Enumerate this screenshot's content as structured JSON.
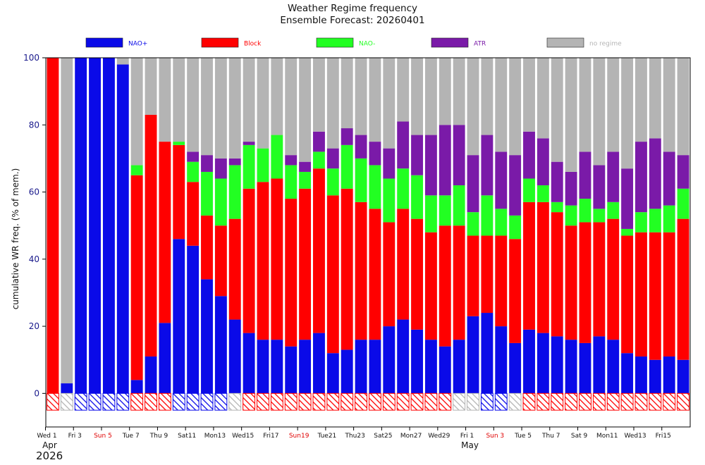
{
  "chart_data": {
    "type": "bar",
    "stacked": true,
    "title": "Weather Regime frequency",
    "subtitle": "Ensemble Forecast: 20260401",
    "ylabel": "cumulative WR freq. (% of mem.)",
    "xlabel": "",
    "ylim": [
      -10,
      100
    ],
    "yticks": [
      0,
      20,
      40,
      60,
      80,
      100
    ],
    "legend_position": "top",
    "legend": [
      {
        "name": "NAO+",
        "color": "#0a0ae8"
      },
      {
        "name": "Block",
        "color": "#ff0000"
      },
      {
        "name": "NAO-",
        "color": "#22ff22"
      },
      {
        "name": "ATR",
        "color": "#7a1aa8"
      },
      {
        "name": "no regime",
        "color": "#b4b4b4"
      }
    ],
    "colors": {
      "nao_plus": "#0a0ae8",
      "block": "#ff0000",
      "nao_minus": "#22ff22",
      "atr": "#7a1aa8",
      "no_regime": "#b4b4b4",
      "tick_text": "#1a1a8c",
      "weekend_text": "#e00000"
    },
    "series_order": [
      "NAO+",
      "Block",
      "NAO-",
      "ATR",
      "no regime"
    ],
    "days": [
      {
        "nao_plus": 0,
        "block": 100,
        "nao_minus": 0,
        "atr": 0,
        "dominant": "Block"
      },
      {
        "nao_plus": 3,
        "block": 0,
        "nao_minus": 0,
        "atr": 0,
        "dominant": "no regime"
      },
      {
        "nao_plus": 100,
        "block": 0,
        "nao_minus": 0,
        "atr": 0,
        "dominant": "NAO+"
      },
      {
        "nao_plus": 100,
        "block": 0,
        "nao_minus": 0,
        "atr": 0,
        "dominant": "NAO+"
      },
      {
        "nao_plus": 100,
        "block": 0,
        "nao_minus": 0,
        "atr": 0,
        "dominant": "NAO+"
      },
      {
        "nao_plus": 98,
        "block": 0,
        "nao_minus": 0,
        "atr": 0,
        "dominant": "NAO+"
      },
      {
        "nao_plus": 4,
        "block": 61,
        "nao_minus": 3,
        "atr": 0,
        "dominant": "Block"
      },
      {
        "nao_plus": 11,
        "block": 72,
        "nao_minus": 0,
        "atr": 0,
        "dominant": "Block"
      },
      {
        "nao_plus": 21,
        "block": 54,
        "nao_minus": 0,
        "atr": 0,
        "dominant": "Block"
      },
      {
        "nao_plus": 46,
        "block": 28,
        "nao_minus": 1,
        "atr": 0,
        "dominant": "NAO+"
      },
      {
        "nao_plus": 44,
        "block": 19,
        "nao_minus": 6,
        "atr": 3,
        "dominant": "NAO+"
      },
      {
        "nao_plus": 34,
        "block": 19,
        "nao_minus": 13,
        "atr": 5,
        "dominant": "NAO+"
      },
      {
        "nao_plus": 29,
        "block": 21,
        "nao_minus": 14,
        "atr": 6,
        "dominant": "NAO+"
      },
      {
        "nao_plus": 22,
        "block": 30,
        "nao_minus": 16,
        "atr": 2,
        "dominant": "no regime"
      },
      {
        "nao_plus": 18,
        "block": 43,
        "nao_minus": 13,
        "atr": 1,
        "dominant": "Block"
      },
      {
        "nao_plus": 16,
        "block": 47,
        "nao_minus": 10,
        "atr": 0,
        "dominant": "Block"
      },
      {
        "nao_plus": 16,
        "block": 48,
        "nao_minus": 13,
        "atr": 0,
        "dominant": "Block"
      },
      {
        "nao_plus": 14,
        "block": 44,
        "nao_minus": 10,
        "atr": 3,
        "dominant": "Block"
      },
      {
        "nao_plus": 16,
        "block": 45,
        "nao_minus": 5,
        "atr": 3,
        "dominant": "Block"
      },
      {
        "nao_plus": 18,
        "block": 49,
        "nao_minus": 5,
        "atr": 6,
        "dominant": "Block"
      },
      {
        "nao_plus": 12,
        "block": 47,
        "nao_minus": 8,
        "atr": 6,
        "dominant": "Block"
      },
      {
        "nao_plus": 13,
        "block": 48,
        "nao_minus": 13,
        "atr": 5,
        "dominant": "Block"
      },
      {
        "nao_plus": 16,
        "block": 41,
        "nao_minus": 13,
        "atr": 7,
        "dominant": "Block"
      },
      {
        "nao_plus": 16,
        "block": 39,
        "nao_minus": 13,
        "atr": 7,
        "dominant": "Block"
      },
      {
        "nao_plus": 20,
        "block": 31,
        "nao_minus": 13,
        "atr": 9,
        "dominant": "Block"
      },
      {
        "nao_plus": 22,
        "block": 33,
        "nao_minus": 12,
        "atr": 14,
        "dominant": "Block"
      },
      {
        "nao_plus": 19,
        "block": 33,
        "nao_minus": 13,
        "atr": 12,
        "dominant": "Block"
      },
      {
        "nao_plus": 16,
        "block": 32,
        "nao_minus": 11,
        "atr": 18,
        "dominant": "Block"
      },
      {
        "nao_plus": 14,
        "block": 36,
        "nao_minus": 9,
        "atr": 21,
        "dominant": "Block"
      },
      {
        "nao_plus": 16,
        "block": 34,
        "nao_minus": 12,
        "atr": 18,
        "dominant": "no regime"
      },
      {
        "nao_plus": 23,
        "block": 24,
        "nao_minus": 7,
        "atr": 17,
        "dominant": "no regime"
      },
      {
        "nao_plus": 24,
        "block": 23,
        "nao_minus": 12,
        "atr": 18,
        "dominant": "NAO+"
      },
      {
        "nao_plus": 20,
        "block": 27,
        "nao_minus": 8,
        "atr": 17,
        "dominant": "NAO+"
      },
      {
        "nao_plus": 15,
        "block": 31,
        "nao_minus": 7,
        "atr": 18,
        "dominant": "no regime"
      },
      {
        "nao_plus": 19,
        "block": 38,
        "nao_minus": 7,
        "atr": 14,
        "dominant": "Block"
      },
      {
        "nao_plus": 18,
        "block": 39,
        "nao_minus": 5,
        "atr": 14,
        "dominant": "Block"
      },
      {
        "nao_plus": 17,
        "block": 37,
        "nao_minus": 3,
        "atr": 12,
        "dominant": "Block"
      },
      {
        "nao_plus": 16,
        "block": 34,
        "nao_minus": 6,
        "atr": 10,
        "dominant": "Block"
      },
      {
        "nao_plus": 15,
        "block": 36,
        "nao_minus": 7,
        "atr": 14,
        "dominant": "Block"
      },
      {
        "nao_plus": 17,
        "block": 34,
        "nao_minus": 4,
        "atr": 13,
        "dominant": "Block"
      },
      {
        "nao_plus": 16,
        "block": 36,
        "nao_minus": 5,
        "atr": 15,
        "dominant": "Block"
      },
      {
        "nao_plus": 12,
        "block": 35,
        "nao_minus": 2,
        "atr": 18,
        "dominant": "Block"
      },
      {
        "nao_plus": 11,
        "block": 37,
        "nao_minus": 6,
        "atr": 21,
        "dominant": "Block"
      },
      {
        "nao_plus": 10,
        "block": 38,
        "nao_minus": 7,
        "atr": 21,
        "dominant": "Block"
      },
      {
        "nao_plus": 11,
        "block": 37,
        "nao_minus": 8,
        "atr": 16,
        "dominant": "Block"
      },
      {
        "nao_plus": 10,
        "block": 42,
        "nao_minus": 9,
        "atr": 10,
        "dominant": "Block"
      }
    ],
    "x_ticks": [
      {
        "day_index": 0,
        "label": "Wed 1",
        "weekend": false
      },
      {
        "day_index": 2,
        "label": "Fri 3",
        "weekend": false
      },
      {
        "day_index": 4,
        "label": "Sun 5",
        "weekend": true
      },
      {
        "day_index": 6,
        "label": "Tue 7",
        "weekend": false
      },
      {
        "day_index": 8,
        "label": "Thu 9",
        "weekend": false
      },
      {
        "day_index": 10,
        "label": "Sat11",
        "weekend": false
      },
      {
        "day_index": 12,
        "label": "Mon13",
        "weekend": false
      },
      {
        "day_index": 14,
        "label": "Wed15",
        "weekend": false
      },
      {
        "day_index": 16,
        "label": "Fri17",
        "weekend": false
      },
      {
        "day_index": 18,
        "label": "Sun19",
        "weekend": true
      },
      {
        "day_index": 20,
        "label": "Tue21",
        "weekend": false
      },
      {
        "day_index": 22,
        "label": "Thu23",
        "weekend": false
      },
      {
        "day_index": 24,
        "label": "Sat25",
        "weekend": false
      },
      {
        "day_index": 26,
        "label": "Mon27",
        "weekend": false
      },
      {
        "day_index": 28,
        "label": "Wed29",
        "weekend": false
      },
      {
        "day_index": 30,
        "label": "Fri 1",
        "weekend": false
      },
      {
        "day_index": 32,
        "label": "Sun 3",
        "weekend": true
      },
      {
        "day_index": 34,
        "label": "Tue 5",
        "weekend": false
      },
      {
        "day_index": 36,
        "label": "Thu 7",
        "weekend": false
      },
      {
        "day_index": 38,
        "label": "Sat 9",
        "weekend": false
      },
      {
        "day_index": 40,
        "label": "Mon11",
        "weekend": false
      },
      {
        "day_index": 42,
        "label": "Wed13",
        "weekend": false
      },
      {
        "day_index": 44,
        "label": "Fri15",
        "weekend": false
      }
    ],
    "month_labels": [
      {
        "day_index": 0,
        "label": "Apr"
      },
      {
        "day_index": 30,
        "label": "May"
      }
    ],
    "year_label": "2026"
  }
}
